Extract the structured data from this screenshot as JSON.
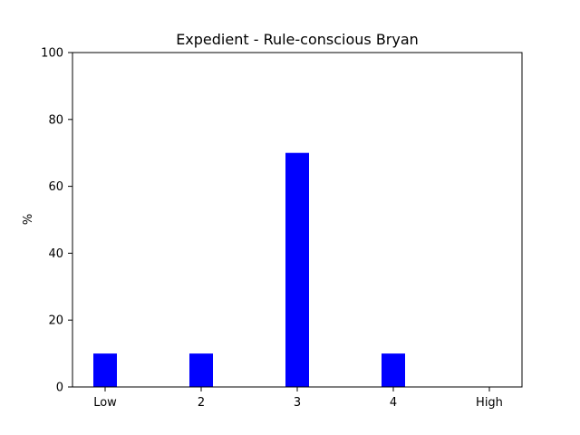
{
  "chart_data": {
    "type": "bar",
    "title": "Expedient - Rule-conscious Bryan",
    "xlabel": "",
    "ylabel": "%",
    "categories": [
      "Low",
      "2",
      "3",
      "4",
      "High"
    ],
    "values": [
      10,
      10,
      70,
      10,
      0
    ],
    "ylim": [
      0,
      100
    ],
    "yticks": [
      "0",
      "20",
      "40",
      "60",
      "80",
      "100"
    ],
    "bar_color": "#0000ff",
    "grid": false,
    "legend": "none"
  }
}
